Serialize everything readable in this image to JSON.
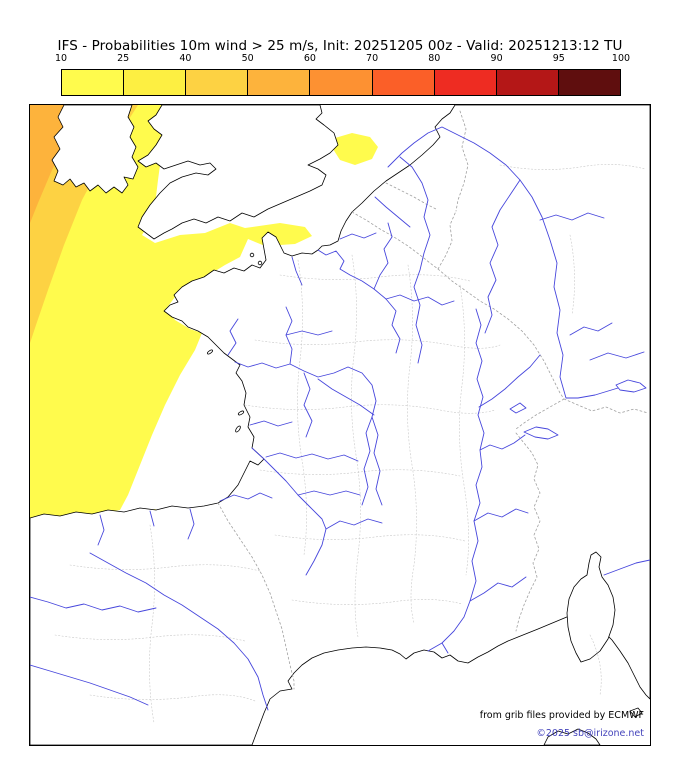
{
  "header": {
    "title": "IFS - Probabilities 10m wind > 25 m/s, Init: 20251205 00z - Valid: 20251213:12 TU"
  },
  "colorbar": {
    "units": "%",
    "ticks": [
      "10",
      "25",
      "40",
      "50",
      "60",
      "70",
      "80",
      "90",
      "95",
      "100"
    ],
    "segments": [
      {
        "range": "10-25",
        "color": "#fffb4d"
      },
      {
        "range": "25-40",
        "color": "#fdef42"
      },
      {
        "range": "40-50",
        "color": "#fdd243"
      },
      {
        "range": "50-60",
        "color": "#fdb33c"
      },
      {
        "range": "60-70",
        "color": "#fd9132"
      },
      {
        "range": "70-80",
        "color": "#fb5f28"
      },
      {
        "range": "80-90",
        "color": "#ee2c22"
      },
      {
        "range": "90-95",
        "color": "#b41717"
      },
      {
        "range": "95-100",
        "color": "#5f0e0e"
      }
    ]
  },
  "map": {
    "coastline_color": "#000000",
    "river_color": "#4646dc",
    "land_color": "#ffffff",
    "field_regions": [
      {
        "name": "atlantic-main",
        "probability": "10-25",
        "color": "#fffb4d"
      },
      {
        "name": "northwest-band",
        "probability": "25-50",
        "color": "#fdd243"
      },
      {
        "name": "northwest-corner",
        "probability": "50-60",
        "color": "#fdb33c"
      },
      {
        "name": "north-sea-patch",
        "probability": "10-25",
        "color": "#fffb4d"
      },
      {
        "name": "cantabrian-coast-patch",
        "probability": "10-25",
        "color": "#fffb4d"
      }
    ],
    "credits": {
      "line1": "from grib files provided by ECMWF",
      "line2": "©2025 sb@irizone.net"
    }
  },
  "chart_data": {
    "type": "heatmap",
    "title": "IFS - Probabilities 10m wind > 25 m/s, Init: 20251205 00z - Valid: 20251213:12 TU",
    "units": "%",
    "legend_thresholds": [
      10,
      25,
      40,
      50,
      60,
      70,
      80,
      90,
      95,
      100
    ],
    "legend_colors": [
      "#fffb4d",
      "#fdef42",
      "#fdd243",
      "#fdb33c",
      "#fd9132",
      "#fb5f28",
      "#ee2c22",
      "#b41717",
      "#5f0e0e"
    ],
    "legend_position": "top",
    "notes": "Probability field shaded over the Atlantic / NW of map; values 10-25% over Biscay, Celtic Sea and Channel approaches, rising to 25-60% in the far northwest corner."
  }
}
